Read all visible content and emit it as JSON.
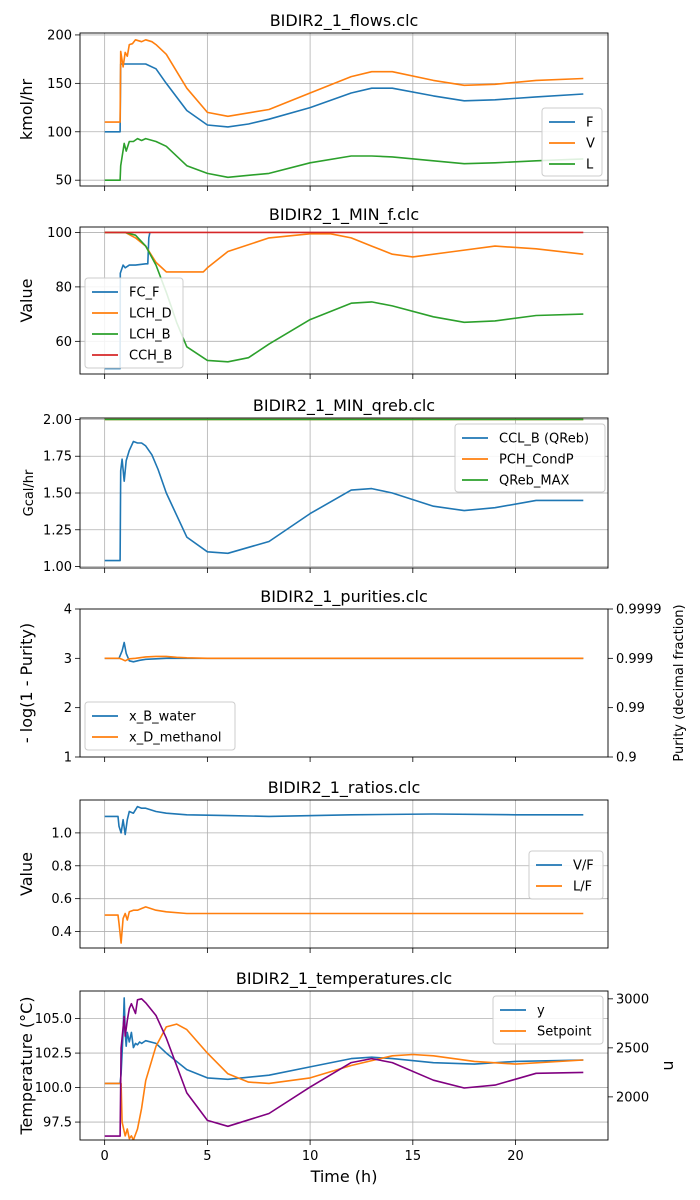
{
  "chart_data": [
    {
      "type": "line",
      "title": "BIDIR2_1_flows.clc",
      "ylabel": "kmol/hr",
      "xlim": [
        -1.2,
        24.5
      ],
      "ylim": [
        44,
        202
      ],
      "yticks": [
        50,
        100,
        150,
        200
      ],
      "grid": true,
      "legend_position": "lower right",
      "series": [
        {
          "name": "F",
          "color": "#1f77b4",
          "x": [
            0,
            0.75,
            0.78,
            1,
            1.5,
            2,
            2.5,
            3,
            4,
            5,
            6,
            7,
            8,
            10,
            12,
            13,
            14,
            16,
            17.5,
            19,
            21,
            23.3
          ],
          "y": [
            100,
            100,
            170,
            170,
            170,
            170,
            165,
            150,
            122,
            107,
            105,
            108,
            113,
            125,
            140,
            145,
            145,
            137,
            132,
            133,
            136,
            139
          ]
        },
        {
          "name": "V",
          "color": "#ff7f0e",
          "x": [
            0,
            0.75,
            0.78,
            0.9,
            1,
            1.1,
            1.2,
            1.35,
            1.5,
            1.8,
            2,
            2.3,
            2.5,
            3,
            4,
            5,
            6,
            8,
            10,
            12,
            13,
            14,
            16,
            17.5,
            19,
            21,
            23.3
          ],
          "y": [
            110,
            110,
            183,
            167,
            182,
            178,
            190,
            191,
            195,
            193,
            195,
            193,
            190,
            180,
            145,
            120,
            116,
            123,
            140,
            157,
            162,
            162,
            153,
            148,
            149,
            153,
            155
          ]
        },
        {
          "name": "L",
          "color": "#2ca02c",
          "x": [
            0,
            0.75,
            0.78,
            0.95,
            1.05,
            1.2,
            1.4,
            1.6,
            1.8,
            2,
            2.5,
            3,
            4,
            5,
            6,
            8,
            10,
            12,
            13,
            14,
            16,
            17.5,
            19,
            21,
            23.3
          ],
          "y": [
            50,
            50,
            65,
            88,
            80,
            90,
            90,
            93,
            91,
            93,
            90,
            85,
            65,
            57,
            53,
            57,
            68,
            75,
            75,
            74,
            70,
            67,
            68,
            70,
            72
          ]
        }
      ]
    },
    {
      "type": "line",
      "title": "BIDIR2_1_MIN_f.clc",
      "ylabel": "Value",
      "xlim": [
        -1.2,
        24.5
      ],
      "ylim": [
        48,
        102
      ],
      "yticks": [
        60,
        80,
        100
      ],
      "grid": true,
      "legend_position": "lower left",
      "series": [
        {
          "name": "FC_F",
          "color": "#1f77b4",
          "x": [
            0,
            0.75,
            0.76,
            0.9,
            1,
            1.2,
            1.5,
            2,
            2.1,
            2.15,
            2.2
          ],
          "y": [
            50,
            50,
            85,
            88,
            87,
            88,
            88,
            88.5,
            88.5,
            98,
            100
          ]
        },
        {
          "name": "LCH_D",
          "color": "#ff7f0e",
          "x": [
            0,
            1,
            1.5,
            2,
            2.5,
            3,
            4,
            4.8,
            5,
            6,
            8,
            10,
            11,
            12,
            13,
            14,
            15,
            17,
            19,
            21,
            23.3
          ],
          "y": [
            100,
            100,
            98,
            95,
            89,
            85.5,
            85.5,
            85.5,
            87,
            93,
            98,
            99.5,
            99.5,
            98,
            95,
            92,
            91,
            93,
            95,
            94,
            92
          ]
        },
        {
          "name": "LCH_B",
          "color": "#2ca02c",
          "x": [
            0,
            1,
            1.5,
            2,
            2.5,
            3,
            3.5,
            4,
            5,
            6,
            7,
            8,
            10,
            12,
            13,
            14,
            16,
            17.5,
            19,
            21,
            23.3
          ],
          "y": [
            100,
            100,
            99,
            95,
            88,
            78,
            67,
            58,
            53,
            52.5,
            54,
            59,
            68,
            74,
            74.5,
            73,
            69,
            67,
            67.5,
            69.5,
            70
          ]
        },
        {
          "name": "CCH_B",
          "color": "#d62728",
          "x": [
            0,
            23.3
          ],
          "y": [
            100,
            100
          ]
        }
      ]
    },
    {
      "type": "line",
      "title": "BIDIR2_1_MIN_qreb.clc",
      "ylabel": "Gcal/hr",
      "xlim": [
        -1.2,
        24.5
      ],
      "ylim": [
        0.99,
        2.01
      ],
      "yticks": [
        1.0,
        1.25,
        1.5,
        1.75,
        2.0
      ],
      "ytick_labels": [
        "1.00",
        "1.25",
        "1.50",
        "1.75",
        "2.00"
      ],
      "grid": true,
      "legend_position": "upper right",
      "series": [
        {
          "name": "CCL_B (QReb)",
          "color": "#1f77b4",
          "x": [
            0,
            0.75,
            0.78,
            0.85,
            0.95,
            1.05,
            1.2,
            1.4,
            1.6,
            1.8,
            2,
            2.3,
            2.6,
            3,
            4,
            5,
            6,
            8,
            10,
            12,
            13,
            14,
            16,
            17.5,
            19,
            21,
            23.3
          ],
          "y": [
            1.04,
            1.04,
            1.65,
            1.73,
            1.58,
            1.72,
            1.79,
            1.85,
            1.84,
            1.84,
            1.82,
            1.76,
            1.66,
            1.5,
            1.2,
            1.1,
            1.09,
            1.17,
            1.36,
            1.52,
            1.53,
            1.5,
            1.41,
            1.38,
            1.4,
            1.45,
            1.45
          ]
        },
        {
          "name": "PCH_CondP",
          "color": "#ff7f0e",
          "x": [
            0,
            23.3
          ],
          "y": [
            2.0,
            2.0
          ]
        },
        {
          "name": "QReb_MAX",
          "color": "#2ca02c",
          "x": [
            0,
            23.3
          ],
          "y": [
            2.0,
            2.0
          ]
        }
      ]
    },
    {
      "type": "line",
      "title": "BIDIR2_1_purities.clc",
      "ylabel": "- log(1 - Purity)",
      "ylabel_right": "Purity (decimal fraction)",
      "xlim": [
        -1.2,
        24.5
      ],
      "ylim": [
        1,
        4
      ],
      "yticks": [
        1,
        2,
        3,
        4
      ],
      "yticks_right": [
        "0.9",
        "0.99",
        "0.999",
        "0.9999"
      ],
      "grid": false,
      "legend_position": "lower left",
      "series": [
        {
          "name": "x_B_water",
          "color": "#1f77b4",
          "x": [
            0,
            0.7,
            0.85,
            0.95,
            1.05,
            1.2,
            1.4,
            1.7,
            2,
            2.5,
            3,
            4,
            6,
            10,
            23.3
          ],
          "y": [
            3,
            3,
            3.15,
            3.32,
            3.1,
            2.95,
            2.93,
            2.96,
            2.98,
            2.99,
            3.0,
            3.0,
            3.0,
            3.0,
            3.0
          ]
        },
        {
          "name": "x_D_methanol",
          "color": "#ff7f0e",
          "x": [
            0,
            0.7,
            0.85,
            1,
            1.2,
            1.5,
            2,
            2.5,
            3,
            3.5,
            4,
            5,
            7,
            10,
            23.3
          ],
          "y": [
            3,
            3,
            2.98,
            2.95,
            2.99,
            3.0,
            3.03,
            3.04,
            3.04,
            3.02,
            3.01,
            3.0,
            3.0,
            3.0,
            3.0
          ]
        }
      ]
    },
    {
      "type": "line",
      "title": "BIDIR2_1_ratios.clc",
      "ylabel": "Value",
      "xlim": [
        -1.2,
        24.5
      ],
      "ylim": [
        0.3,
        1.2
      ],
      "yticks": [
        0.4,
        0.6,
        0.8,
        1.0
      ],
      "ytick_labels": [
        "0.4",
        "0.6",
        "0.8",
        "1.0"
      ],
      "grid": true,
      "legend_position": "center right",
      "series": [
        {
          "name": "V/F",
          "color": "#1f77b4",
          "x": [
            0,
            0.65,
            0.7,
            0.8,
            0.9,
            1.0,
            1.1,
            1.2,
            1.4,
            1.6,
            1.8,
            2,
            2.5,
            3,
            4,
            6,
            8,
            12,
            16,
            20,
            23.3
          ],
          "y": [
            1.1,
            1.1,
            1.04,
            1.0,
            1.08,
            0.99,
            1.08,
            1.13,
            1.12,
            1.16,
            1.15,
            1.15,
            1.13,
            1.12,
            1.11,
            1.105,
            1.1,
            1.11,
            1.115,
            1.11,
            1.11
          ]
        },
        {
          "name": "L/F",
          "color": "#ff7f0e",
          "x": [
            0,
            0.65,
            0.7,
            0.8,
            0.9,
            1.0,
            1.1,
            1.2,
            1.4,
            1.6,
            1.8,
            2,
            2.5,
            3,
            4,
            6,
            10,
            23.3
          ],
          "y": [
            0.5,
            0.5,
            0.45,
            0.33,
            0.48,
            0.51,
            0.47,
            0.52,
            0.53,
            0.53,
            0.54,
            0.55,
            0.53,
            0.52,
            0.51,
            0.51,
            0.51,
            0.51
          ]
        }
      ]
    },
    {
      "type": "line",
      "title": "BIDIR2_1_temperatures.clc",
      "xlabel": "Time (h)",
      "ylabel": "Temperature (°C)",
      "ylabel_right": "u",
      "xlim": [
        -1.2,
        24.5
      ],
      "xticks": [
        0,
        5,
        10,
        15,
        20
      ],
      "ylim": [
        96.2,
        107
      ],
      "yticks": [
        97.5,
        100.0,
        102.5,
        105.0
      ],
      "ytick_labels": [
        "97.5",
        "100.0",
        "102.5",
        "105.0"
      ],
      "ylim_right": [
        1560,
        3080
      ],
      "yticks_right": [
        2000,
        2500,
        3000
      ],
      "grid": true,
      "legend_position": "upper right",
      "series": [
        {
          "name": "y",
          "color": "#1f77b4",
          "x": [
            0,
            0.75,
            0.8,
            0.9,
            0.95,
            1.0,
            1.05,
            1.1,
            1.2,
            1.3,
            1.4,
            1.5,
            1.6,
            1.7,
            1.8,
            1.9,
            2,
            2.5,
            3,
            4,
            5,
            6,
            8,
            10,
            12,
            13,
            14,
            16,
            18,
            20,
            23.3
          ],
          "y": [
            100.3,
            100.3,
            101,
            104,
            106.5,
            104,
            103,
            104,
            103.3,
            104,
            102.9,
            103.2,
            103.1,
            103.3,
            103.2,
            103.3,
            103.4,
            103.2,
            102.5,
            101.3,
            100.7,
            100.6,
            100.9,
            101.5,
            102.1,
            102.2,
            102.1,
            101.8,
            101.7,
            101.9,
            102.0
          ]
        },
        {
          "name": "Setpoint",
          "color": "#ff7f0e",
          "x": [
            0,
            0.8,
            0.85,
            1.0,
            1.1,
            1.2,
            1.3,
            1.4,
            1.6,
            1.8,
            2,
            2.5,
            3,
            3.5,
            4,
            5,
            6,
            7,
            8,
            10,
            12,
            14,
            15,
            16,
            18,
            20,
            23.3
          ],
          "y": [
            100.3,
            100.3,
            97.5,
            96.5,
            97,
            96.3,
            96.5,
            96.2,
            97,
            98.5,
            100.5,
            103,
            104.4,
            104.6,
            104.2,
            102.5,
            101,
            100.4,
            100.3,
            100.7,
            101.6,
            102.3,
            102.4,
            102.3,
            101.9,
            101.7,
            102.0
          ]
        },
        {
          "name": "u",
          "axis": "right",
          "color": "#800080",
          "x": [
            0,
            0.75,
            0.8,
            0.95,
            1.0,
            1.1,
            1.2,
            1.3,
            1.5,
            1.6,
            1.8,
            2,
            2.5,
            3,
            3.5,
            4,
            5,
            6,
            8,
            10,
            12,
            13,
            14,
            16,
            17.5,
            19,
            21,
            23.3
          ],
          "y": [
            1600,
            1600,
            2500,
            2820,
            2620,
            2780,
            2900,
            2950,
            2850,
            2990,
            3000,
            2960,
            2830,
            2600,
            2320,
            2040,
            1760,
            1700,
            1830,
            2100,
            2350,
            2390,
            2350,
            2170,
            2090,
            2120,
            2240,
            2250
          ]
        }
      ]
    }
  ]
}
